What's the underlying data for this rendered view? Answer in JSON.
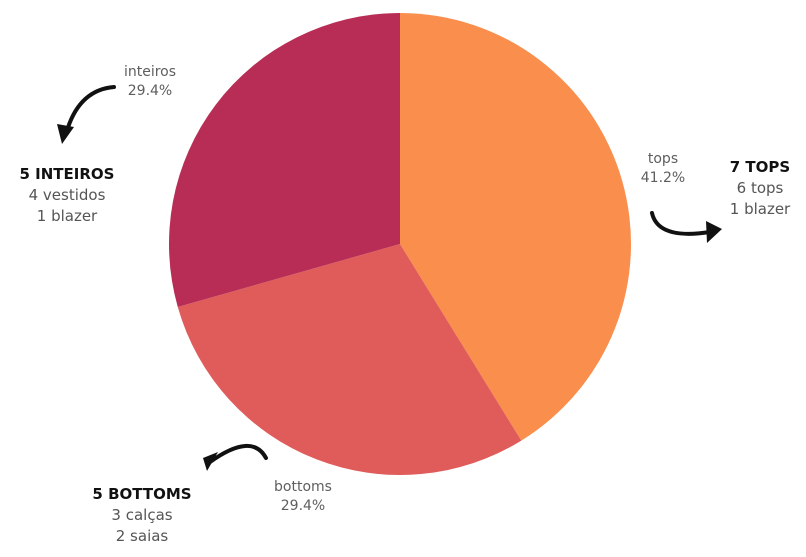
{
  "chart_data": {
    "type": "pie",
    "slices": [
      {
        "label": "tops",
        "percent_label": "41.2%",
        "value": 41.2,
        "color": "#FA8E4D"
      },
      {
        "label": "bottoms",
        "percent_label": "29.4%",
        "value": 29.4,
        "color": "#E05C5A"
      },
      {
        "label": "inteiros",
        "percent_label": "29.4%",
        "value": 29.4,
        "color": "#B82D56"
      }
    ],
    "start": "12 o'clock, clockwise"
  },
  "annotations": {
    "tops": {
      "head": "7 TOPS",
      "lines": [
        "6 tops",
        "1 blazer"
      ]
    },
    "bottoms": {
      "head": "5 BOTTOMS",
      "lines": [
        "3 calças",
        "2 saias"
      ]
    },
    "inteiros": {
      "head": "5 INTEIROS",
      "lines": [
        "4 vestidos",
        "1 blazer"
      ]
    }
  },
  "icons": {
    "arrows": "curved-arrow-icon"
  }
}
